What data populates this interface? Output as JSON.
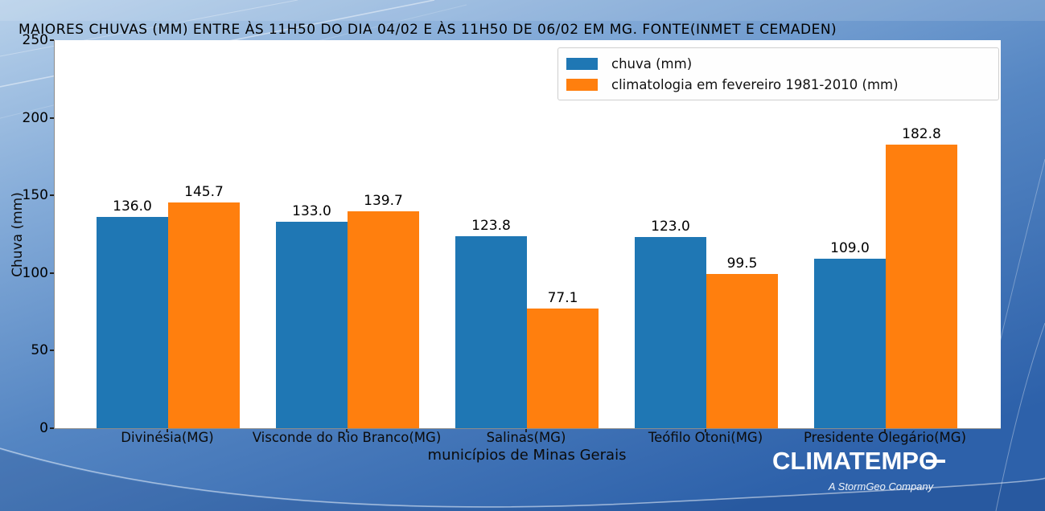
{
  "title": "MAIORES CHUVAS (MM) ENTRE ÀS 11H50 DO DIA 04/02 E ÀS 11H50 DE 06/02 EM MG. FONTE(INMET E CEMADEN)",
  "chart_data": {
    "type": "bar",
    "categories": [
      "Divinésia(MG)",
      "Visconde do Rio Branco(MG)",
      "Salinas(MG)",
      "Teófilo Otoni(MG)",
      "Presidente Olegário(MG)"
    ],
    "series": [
      {
        "name": "chuva (mm)",
        "color": "#1f77b4",
        "values": [
          136.0,
          133.0,
          123.8,
          123.0,
          109.0
        ]
      },
      {
        "name": "climatologia em fevereiro 1981-2010 (mm)",
        "color": "#ff7f0e",
        "values": [
          145.7,
          139.7,
          77.1,
          99.5,
          182.8
        ]
      }
    ],
    "value_label_decimals": 1,
    "xlabel": "municípios de Minas Gerais",
    "ylabel": "Chuva (mm)",
    "ylim": [
      0,
      250
    ],
    "yticks": [
      0,
      50,
      100,
      150,
      200,
      250
    ],
    "grid": false,
    "legend_position": "upper right",
    "plot_background": "#ffffff"
  },
  "legend": {
    "items": [
      {
        "label": "chuva (mm)",
        "color": "#1f77b4"
      },
      {
        "label": "climatologia em fevereiro 1981-2010 (mm)",
        "color": "#ff7f0e"
      }
    ]
  },
  "branding": {
    "logo_text": "CLIMATEMPO",
    "tagline": "A StormGeo Company"
  },
  "colors": {
    "bar_blue": "#1f77b4",
    "bar_orange": "#ff7f0e",
    "background_top": "#b8d1ea",
    "background_bottom": "#2d61aa",
    "text": "#000000",
    "logo_white": "#ffffff"
  }
}
